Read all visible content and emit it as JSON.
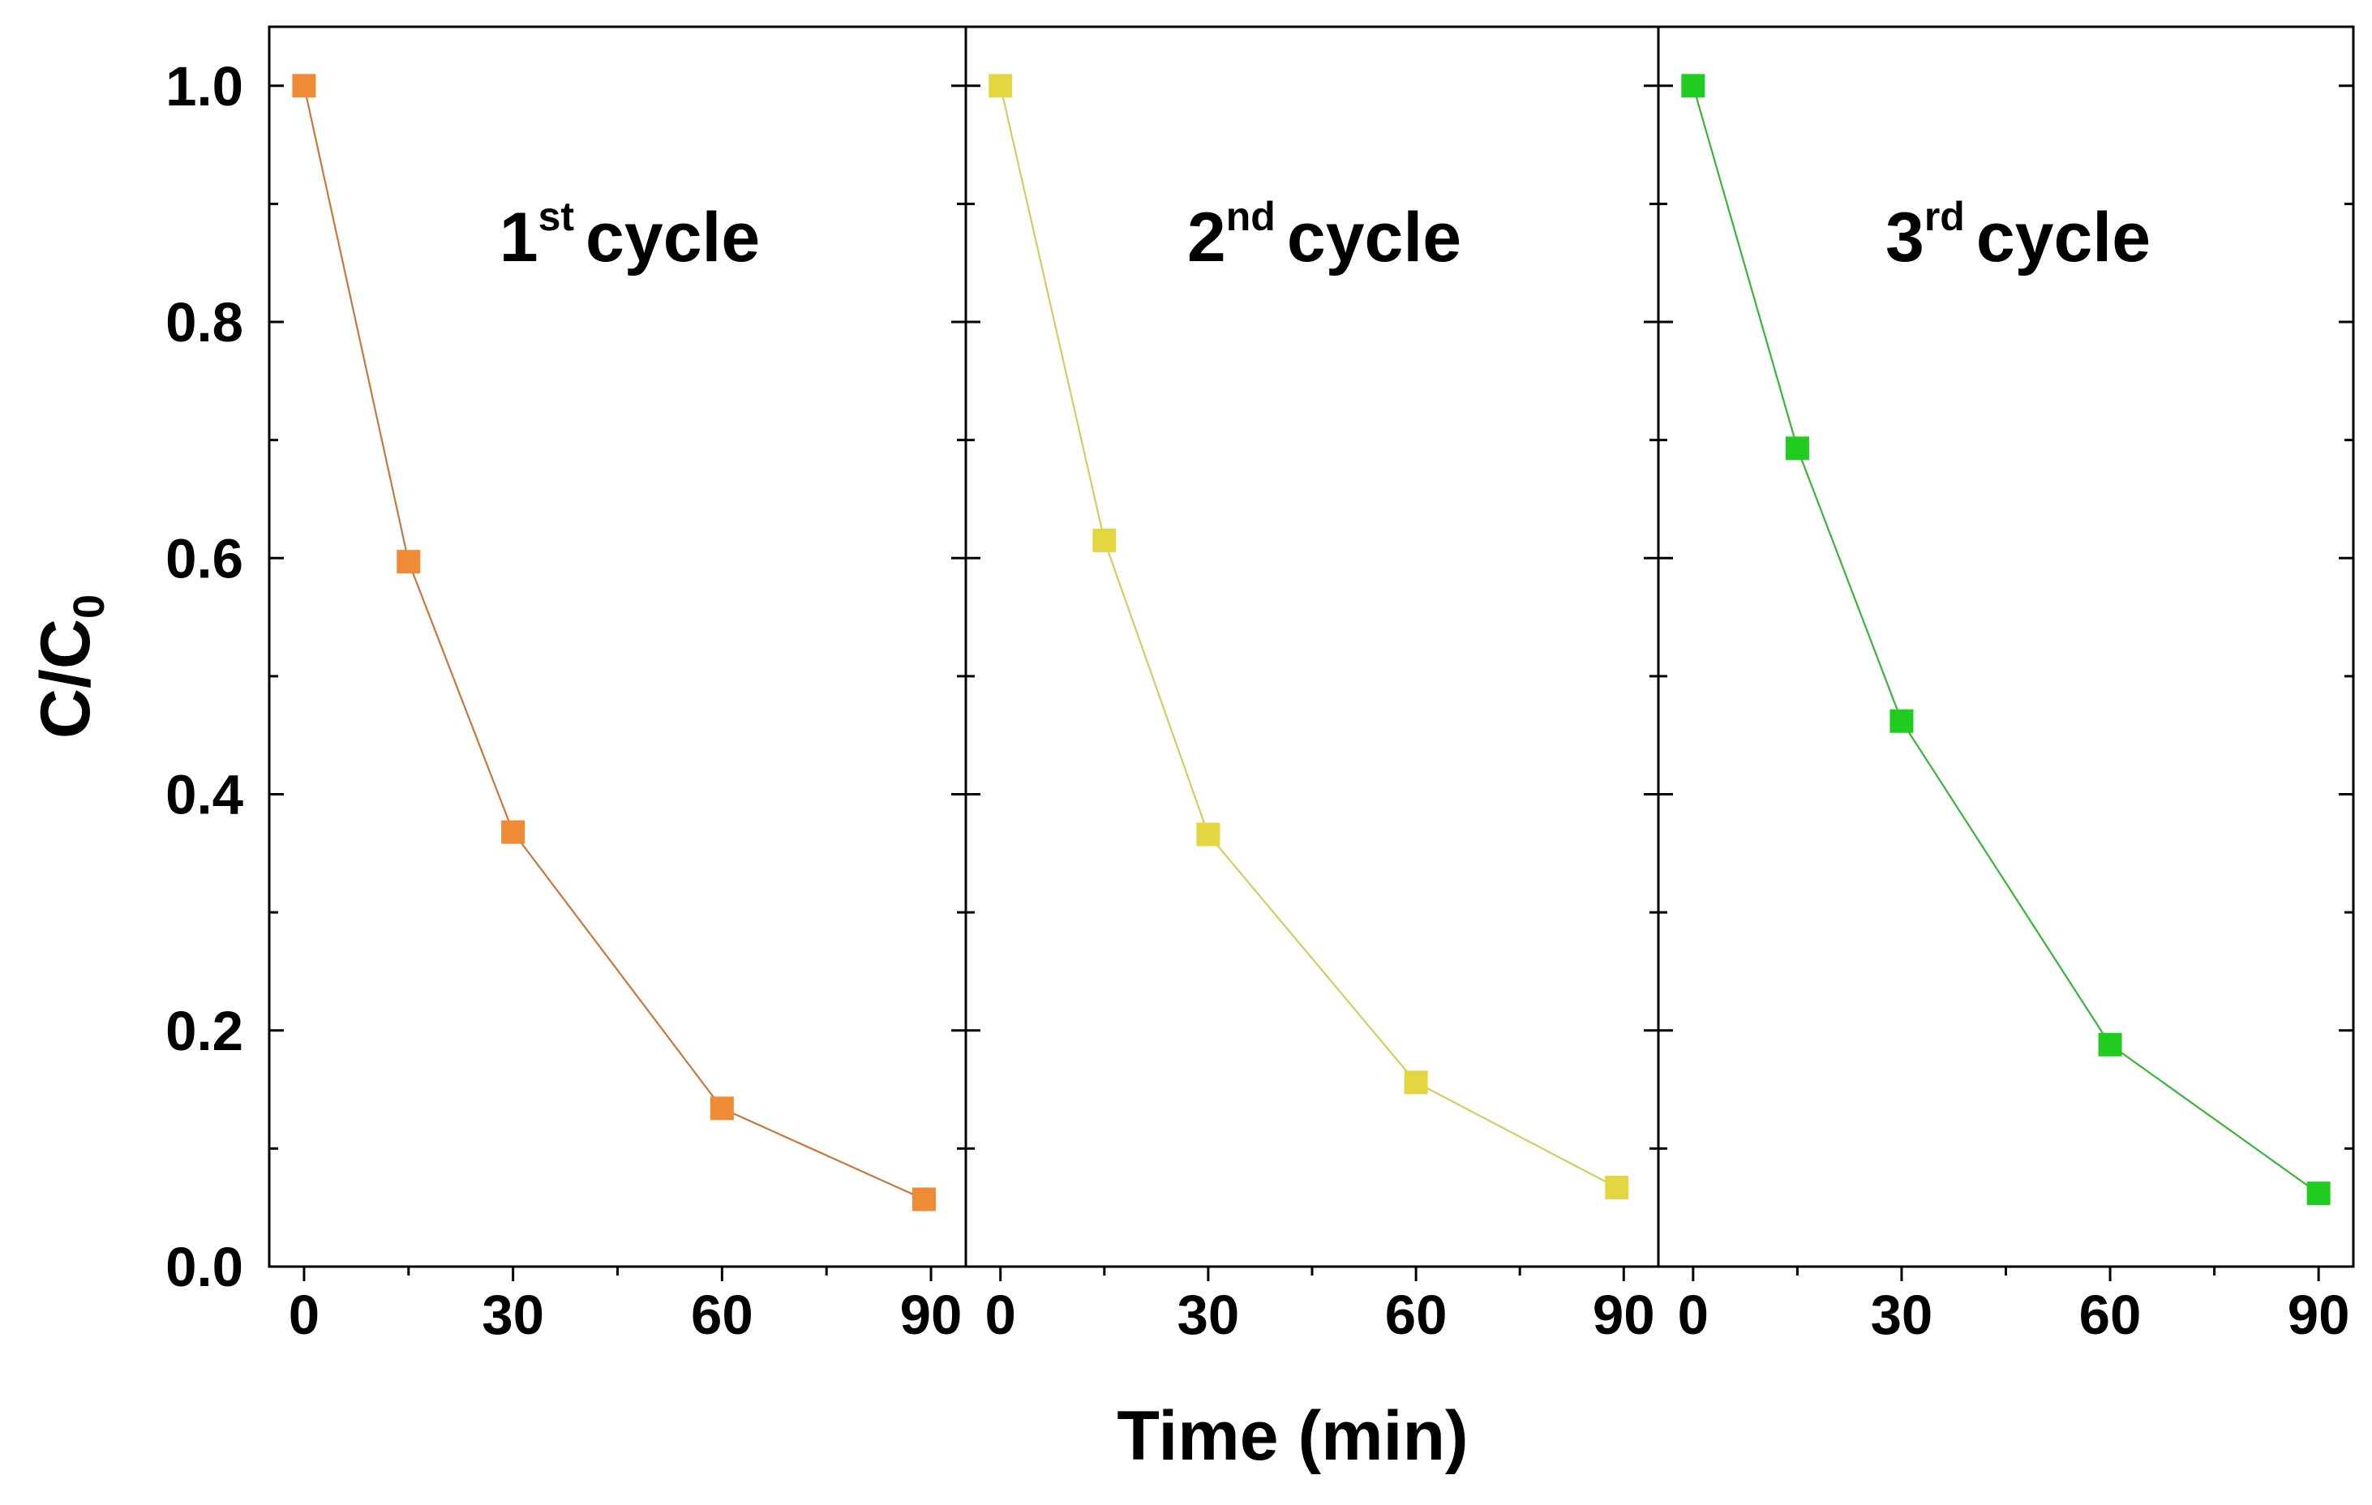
{
  "chart_data": {
    "type": "line",
    "xlabel": "Time (min)",
    "ylabel": {
      "main": "C/C",
      "subscript": "0"
    },
    "xlim": [
      -5,
      95
    ],
    "ylim": [
      0.0,
      1.05
    ],
    "x_ticks": [
      "0",
      "30",
      "60",
      "90"
    ],
    "y_ticks": [
      "0.0",
      "0.2",
      "0.4",
      "0.6",
      "0.8",
      "1.0"
    ],
    "panels": [
      {
        "label": {
          "number": "1",
          "superscript": "st",
          "text": "cycle"
        },
        "color": "#ef8a35",
        "line_color": "#c8763d",
        "x": [
          0,
          15,
          30,
          60,
          89
        ],
        "y": [
          1.0,
          0.597,
          0.368,
          0.134,
          0.057
        ]
      },
      {
        "label": {
          "number": "2",
          "superscript": "nd",
          "text": "cycle"
        },
        "color": "#e4d640",
        "line_color": "#d4cc60",
        "x": [
          0,
          15,
          30,
          60,
          89
        ],
        "y": [
          1.0,
          0.615,
          0.366,
          0.156,
          0.067
        ]
      },
      {
        "label": {
          "number": "3",
          "superscript": "rd",
          "text": "cycle"
        },
        "color": "#21cc21",
        "line_color": "#38b538",
        "x": [
          0,
          15,
          30,
          60,
          90
        ],
        "y": [
          1.0,
          0.693,
          0.462,
          0.188,
          0.062
        ]
      }
    ]
  }
}
